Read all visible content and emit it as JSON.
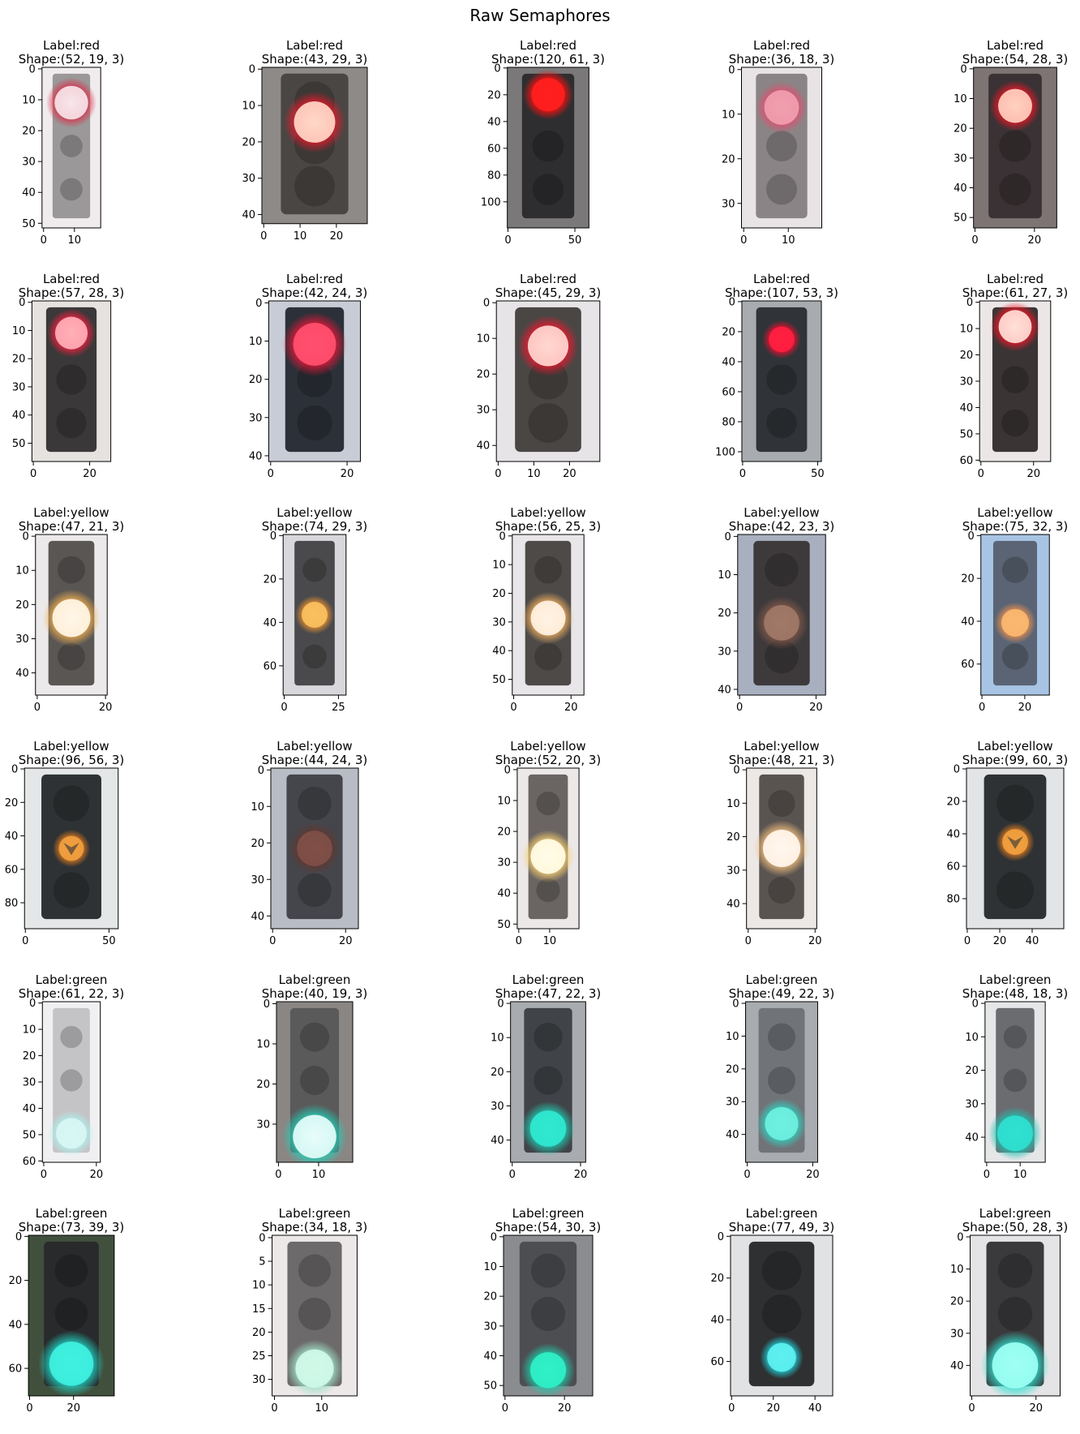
{
  "figure": {
    "title": "Raw Semaphores"
  },
  "colors": {
    "red": "#e8142c",
    "yellow": "#f2a640",
    "green": "#2de0cc",
    "housing": "#3a3c40",
    "unlit": "#4a4a4e"
  },
  "chart_data": [
    {
      "type": "image",
      "label": "red",
      "h": 52,
      "w": 19,
      "title_line1": "Label:red",
      "title_line2": "Shape:(52, 19, 3)",
      "xticks": [
        0,
        10
      ],
      "yticks": [
        0,
        10,
        20,
        30,
        40,
        50
      ],
      "bg": "#f0ecee",
      "housing": "#9a9898",
      "lit_color": "#f6e6ea",
      "lit_pos": 0.22,
      "lit_r": 0.42,
      "glow": "#d8304a"
    },
    {
      "type": "image",
      "label": "red",
      "h": 43,
      "w": 29,
      "title_line1": "Label:red",
      "title_line2": "Shape:(43, 29, 3)",
      "xticks": [
        0,
        10,
        20
      ],
      "yticks": [
        0,
        10,
        20,
        30,
        40
      ],
      "bg": "#8e8a88",
      "housing": "#4a4644",
      "lit_color": "#ffd8c8",
      "lit_pos": 0.35,
      "lit_r": 0.3,
      "glow": "#e81a2a"
    },
    {
      "type": "image",
      "label": "red",
      "h": 120,
      "w": 61,
      "title_line1": "Label:red",
      "title_line2": "Shape:(120, 61, 3)",
      "xticks": [
        0,
        50
      ],
      "yticks": [
        0,
        20,
        40,
        60,
        80,
        100
      ],
      "bg": "#7a7878",
      "housing": "#2e2e30",
      "lit_color": "#ff2020",
      "lit_pos": 0.17,
      "lit_r": 0.3,
      "glow": "#ff1010"
    },
    {
      "type": "image",
      "label": "red",
      "h": 36,
      "w": 18,
      "title_line1": "Label:red",
      "title_line2": "Shape:(36, 18, 3)",
      "xticks": [
        0,
        10
      ],
      "yticks": [
        0,
        10,
        20,
        30
      ],
      "bg": "#e8e4e6",
      "housing": "#8a8486",
      "lit_color": "#f0a0b0",
      "lit_pos": 0.25,
      "lit_r": 0.32,
      "glow": "#e05070"
    },
    {
      "type": "image",
      "label": "red",
      "h": 54,
      "w": 28,
      "title_line1": "Label:red",
      "title_line2": "Shape:(54, 28, 3)",
      "xticks": [
        0,
        20
      ],
      "yticks": [
        0,
        10,
        20,
        30,
        40,
        50
      ],
      "bg": "#7e7474",
      "housing": "#3a3234",
      "lit_color": "#ffd0c0",
      "lit_pos": 0.24,
      "lit_r": 0.3,
      "glow": "#e81828"
    },
    {
      "type": "image",
      "label": "red",
      "h": 57,
      "w": 28,
      "title_line1": "Label:red",
      "title_line2": "Shape:(57, 28, 3)",
      "xticks": [
        0,
        20
      ],
      "yticks": [
        0,
        10,
        20,
        30,
        40,
        50
      ],
      "bg": "#e6e2e0",
      "housing": "#3a3838",
      "lit_color": "#ffb0b8",
      "lit_pos": 0.2,
      "lit_r": 0.3,
      "glow": "#f02040"
    },
    {
      "type": "image",
      "label": "red",
      "h": 42,
      "w": 24,
      "title_line1": "Label:red",
      "title_line2": "Shape:(42, 24, 3)",
      "xticks": [
        0,
        20
      ],
      "yticks": [
        0,
        10,
        20,
        30,
        40
      ],
      "bg": "#c8ccd6",
      "housing": "#2c3038",
      "lit_color": "#ff5070",
      "lit_pos": 0.27,
      "lit_r": 0.36,
      "glow": "#e8183a"
    },
    {
      "type": "image",
      "label": "red",
      "h": 45,
      "w": 29,
      "title_line1": "Label:red",
      "title_line2": "Shape:(45, 29, 3)",
      "xticks": [
        0,
        10,
        20
      ],
      "yticks": [
        0,
        10,
        20,
        30,
        40
      ],
      "bg": "#e6e4e6",
      "housing": "#4a4644",
      "lit_color": "#ffd8d0",
      "lit_pos": 0.28,
      "lit_r": 0.3,
      "glow": "#f01830"
    },
    {
      "type": "image",
      "label": "red",
      "h": 107,
      "w": 53,
      "title_line1": "Label:red",
      "title_line2": "Shape:(107, 53, 3)",
      "xticks": [
        0,
        50
      ],
      "yticks": [
        0,
        20,
        40,
        60,
        80,
        100
      ],
      "bg": "#a8acb0",
      "housing": "#303438",
      "lit_color": "#ff2040",
      "lit_pos": 0.24,
      "lit_r": 0.22,
      "glow": "#e81030"
    },
    {
      "type": "image",
      "label": "red",
      "h": 61,
      "w": 27,
      "title_line1": "Label:red",
      "title_line2": "Shape:(61, 27, 3)",
      "xticks": [
        0,
        20
      ],
      "yticks": [
        0,
        10,
        20,
        30,
        40,
        50,
        60
      ],
      "bg": "#ece6e6",
      "housing": "#3a3434",
      "lit_color": "#ffe0d8",
      "lit_pos": 0.16,
      "lit_r": 0.34,
      "glow": "#f01828"
    },
    {
      "type": "image",
      "label": "yellow",
      "h": 47,
      "w": 21,
      "title_line1": "Label:yellow",
      "title_line2": "Shape:(47, 21, 3)",
      "xticks": [
        0,
        20
      ],
      "yticks": [
        0,
        10,
        20,
        30,
        40
      ],
      "bg": "#ebe9ea",
      "housing": "#5a5654",
      "lit_color": "#fff6e8",
      "lit_pos": 0.52,
      "lit_r": 0.4,
      "glow": "#f0b050"
    },
    {
      "type": "image",
      "label": "yellow",
      "h": 74,
      "w": 29,
      "title_line1": "Label:yellow",
      "title_line2": "Shape:(74, 29, 3)",
      "xticks": [
        0,
        25
      ],
      "yticks": [
        0,
        20,
        40,
        60
      ],
      "bg": "#d8d8dc",
      "housing": "#4a4a4c",
      "lit_color": "#f8c060",
      "lit_pos": 0.5,
      "lit_r": 0.28,
      "glow": "#e89030"
    },
    {
      "type": "image",
      "label": "yellow",
      "h": 56,
      "w": 25,
      "title_line1": "Label:yellow",
      "title_line2": "Shape:(56, 25, 3)",
      "xticks": [
        0,
        20
      ],
      "yticks": [
        0,
        10,
        20,
        30,
        40,
        50
      ],
      "bg": "#e8e6e8",
      "housing": "#4e4a48",
      "lit_color": "#fff2e4",
      "lit_pos": 0.52,
      "lit_r": 0.36,
      "glow": "#f0b060"
    },
    {
      "type": "image",
      "label": "yellow",
      "h": 42,
      "w": 23,
      "title_line1": "Label:yellow",
      "title_line2": "Shape:(42, 23, 3)",
      "xticks": [
        0,
        20
      ],
      "yticks": [
        0,
        10,
        20,
        30,
        40
      ],
      "bg": "#a8b0c0",
      "housing": "#3e3a3c",
      "lit_color": "#a07868",
      "lit_pos": 0.55,
      "lit_r": 0.3,
      "glow": "#805848"
    },
    {
      "type": "image",
      "label": "yellow",
      "h": 75,
      "w": 32,
      "title_line1": "Label:yellow",
      "title_line2": "Shape:(75, 32, 3)",
      "xticks": [
        0,
        20
      ],
      "yticks": [
        0,
        20,
        40,
        60
      ],
      "bg": "#a8c4e4",
      "housing": "#5a6474",
      "lit_color": "#f8b870",
      "lit_pos": 0.55,
      "lit_r": 0.28,
      "glow": "#e89050"
    },
    {
      "type": "image",
      "label": "yellow",
      "h": 96,
      "w": 56,
      "title_line1": "Label:yellow",
      "title_line2": "Shape:(96, 56, 3)",
      "xticks": [
        0,
        50
      ],
      "yticks": [
        0,
        20,
        40,
        60,
        80
      ],
      "bg": "#e4e6e8",
      "housing": "#2e3234",
      "lit_color": "#f0a040",
      "lit_pos": 0.5,
      "lit_r": 0.18,
      "glow": "#d87820",
      "arrow": true
    },
    {
      "type": "image",
      "label": "yellow",
      "h": 44,
      "w": 24,
      "title_line1": "Label:yellow",
      "title_line2": "Shape:(44, 24, 3)",
      "xticks": [
        0,
        20
      ],
      "yticks": [
        0,
        10,
        20,
        30,
        40
      ],
      "bg": "#b8bcc4",
      "housing": "#44464c",
      "lit_color": "#805048",
      "lit_pos": 0.5,
      "lit_r": 0.3,
      "glow": "#603830"
    },
    {
      "type": "image",
      "label": "yellow",
      "h": 52,
      "w": 20,
      "title_line1": "Label:yellow",
      "title_line2": "Shape:(52, 20, 3)",
      "xticks": [
        0,
        10
      ],
      "yticks": [
        0,
        10,
        20,
        30,
        40,
        50
      ],
      "bg": "#ece8e8",
      "housing": "#6a6462",
      "lit_color": "#fffce8",
      "lit_pos": 0.55,
      "lit_r": 0.42,
      "glow": "#f8d070"
    },
    {
      "type": "image",
      "label": "yellow",
      "h": 48,
      "w": 21,
      "title_line1": "Label:yellow",
      "title_line2": "Shape:(48, 21, 3)",
      "xticks": [
        0,
        20
      ],
      "yticks": [
        0,
        10,
        20,
        30,
        40
      ],
      "bg": "#ece8e6",
      "housing": "#5a5450",
      "lit_color": "#fff6ee",
      "lit_pos": 0.5,
      "lit_r": 0.4,
      "glow": "#f4c080"
    },
    {
      "type": "image",
      "label": "yellow",
      "h": 99,
      "w": 60,
      "title_line1": "Label:yellow",
      "title_line2": "Shape:(99, 60, 3)",
      "xticks": [
        0,
        20,
        40
      ],
      "yticks": [
        0,
        20,
        40,
        60,
        80
      ],
      "bg": "#e2e4e6",
      "housing": "#2e3234",
      "lit_color": "#f0a040",
      "lit_pos": 0.46,
      "lit_r": 0.18,
      "glow": "#d87820",
      "arrow": true
    },
    {
      "type": "image",
      "label": "green",
      "h": 61,
      "w": 22,
      "title_line1": "Label:green",
      "title_line2": "Shape:(61, 22, 3)",
      "xticks": [
        0,
        20
      ],
      "yticks": [
        0,
        10,
        20,
        30,
        40,
        50,
        60
      ],
      "bg": "#f0f0f2",
      "housing": "#c4c4c6",
      "lit_color": "#d8f6f4",
      "lit_pos": 0.82,
      "lit_r": 0.38,
      "glow": "#b0eeea"
    },
    {
      "type": "image",
      "label": "green",
      "h": 40,
      "w": 19,
      "title_line1": "Label:green",
      "title_line2": "Shape:(40, 19, 3)",
      "xticks": [
        0,
        10
      ],
      "yticks": [
        0,
        10,
        20,
        30
      ],
      "bg": "#8a8684",
      "housing": "#5a5a5a",
      "lit_color": "#e8fcfa",
      "lit_pos": 0.84,
      "lit_r": 0.44,
      "glow": "#20d0b8"
    },
    {
      "type": "image",
      "label": "green",
      "h": 47,
      "w": 22,
      "title_line1": "Label:green",
      "title_line2": "Shape:(47, 22, 3)",
      "xticks": [
        0,
        20
      ],
      "yticks": [
        0,
        10,
        20,
        30,
        40
      ],
      "bg": "#a8acb0",
      "housing": "#404448",
      "lit_color": "#30e8d0",
      "lit_pos": 0.79,
      "lit_r": 0.36,
      "glow": "#20c8b0"
    },
    {
      "type": "image",
      "label": "green",
      "h": 49,
      "w": 22,
      "title_line1": "Label:green",
      "title_line2": "Shape:(49, 22, 3)",
      "xticks": [
        0,
        20
      ],
      "yticks": [
        0,
        10,
        20,
        30,
        40
      ],
      "bg": "#a8acb0",
      "housing": "#707478",
      "lit_color": "#70f0e0",
      "lit_pos": 0.76,
      "lit_r": 0.34,
      "glow": "#30d0c0"
    },
    {
      "type": "image",
      "label": "green",
      "h": 48,
      "w": 18,
      "title_line1": "Label:green",
      "title_line2": "Shape:(48, 18, 3)",
      "xticks": [
        0,
        10
      ],
      "yticks": [
        0,
        10,
        20,
        30,
        40
      ],
      "bg": "#e4e6e8",
      "housing": "#6a6c70",
      "lit_color": "#30e0d0",
      "lit_pos": 0.82,
      "lit_r": 0.44,
      "glow": "#20c0b0"
    },
    {
      "type": "image",
      "label": "green",
      "h": 73,
      "w": 39,
      "title_line1": "Label:green",
      "title_line2": "Shape:(73, 39, 3)",
      "xticks": [
        0,
        20
      ],
      "yticks": [
        0,
        20,
        40,
        60
      ],
      "bg": "#40503c",
      "housing": "#282a2c",
      "lit_color": "#40f0e0",
      "lit_pos": 0.8,
      "lit_r": 0.4,
      "glow": "#20d8c8"
    },
    {
      "type": "image",
      "label": "green",
      "h": 34,
      "w": 18,
      "title_line1": "Label:green",
      "title_line2": "Shape:(34, 18, 3)",
      "xticks": [
        0,
        10
      ],
      "yticks": [
        0,
        5,
        10,
        15,
        20,
        25,
        30
      ],
      "bg": "#ece8e8",
      "housing": "#6c6a6a",
      "lit_color": "#d0f8e8",
      "lit_pos": 0.83,
      "lit_r": 0.34,
      "glow": "#a0e0c8"
    },
    {
      "type": "image",
      "label": "green",
      "h": 54,
      "w": 30,
      "title_line1": "Label:green",
      "title_line2": "Shape:(54, 30, 3)",
      "xticks": [
        0,
        20
      ],
      "yticks": [
        0,
        10,
        20,
        30,
        40,
        50
      ],
      "bg": "#8a8c90",
      "housing": "#4c4e52",
      "lit_color": "#30f0c8",
      "lit_pos": 0.84,
      "lit_r": 0.3,
      "glow": "#20c8a8"
    },
    {
      "type": "image",
      "label": "green",
      "h": 77,
      "w": 49,
      "title_line1": "Label:green",
      "title_line2": "Shape:(77, 49, 3)",
      "xticks": [
        0,
        20,
        40
      ],
      "yticks": [
        0,
        20,
        40,
        60
      ],
      "bg": "#e0e2e4",
      "housing": "#2e3032",
      "lit_color": "#60f0f0",
      "lit_pos": 0.76,
      "lit_r": 0.2,
      "glow": "#20d0d8"
    },
    {
      "type": "image",
      "label": "green",
      "h": 50,
      "w": 28,
      "title_line1": "Label:green",
      "title_line2": "Shape:(50, 28, 3)",
      "xticks": [
        0,
        20
      ],
      "yticks": [
        0,
        10,
        20,
        30,
        40
      ],
      "bg": "#e4e4e6",
      "housing": "#3a3a3c",
      "lit_color": "#a0fff4",
      "lit_pos": 0.81,
      "lit_r": 0.4,
      "glow": "#30e0d0"
    }
  ]
}
